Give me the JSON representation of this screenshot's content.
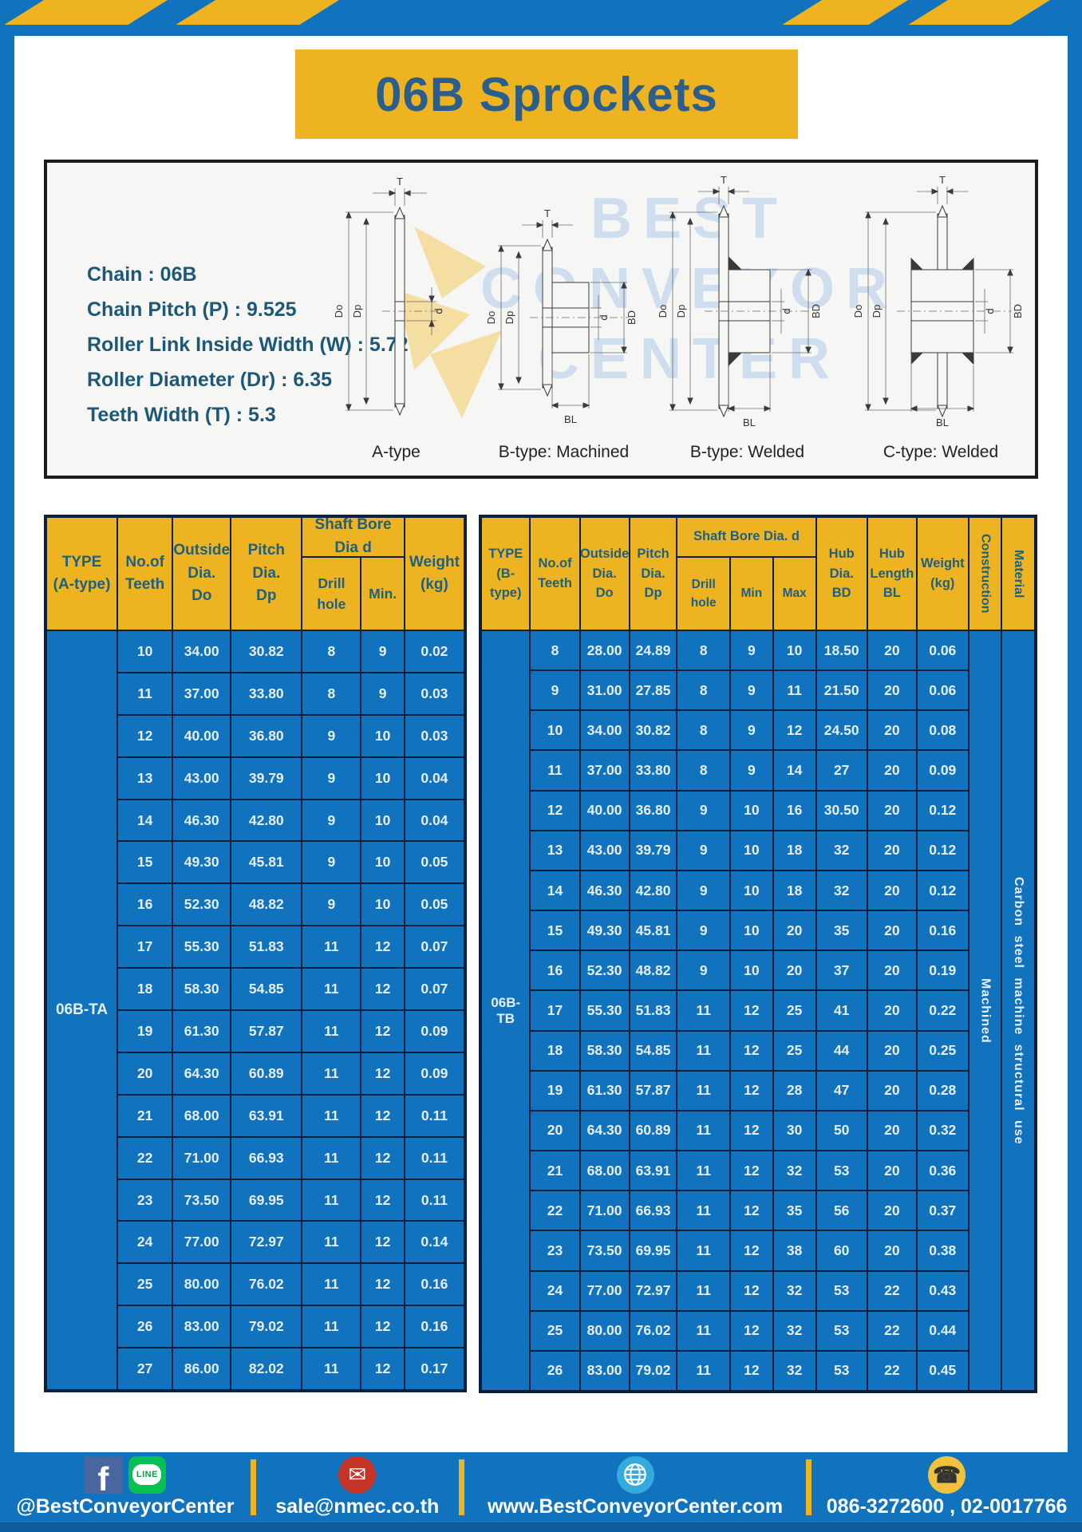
{
  "page": {
    "title": "06B Sprockets"
  },
  "colors": {
    "blue": "#1173bd",
    "yellow": "#eeb321",
    "grid_navy": "#0c1f3d",
    "header_text": "#1f607f",
    "title_text": "#2b5e8c",
    "spec_text": "#1d5878"
  },
  "specs": {
    "lines": "Chain : 06B\nChain Pitch (P) : 9.525\nRoller Link Inside Width (W) : 5.72\nRoller Diameter (Dr) : 6.35\nTeeth Width (T) : 5.3"
  },
  "watermark": {
    "text": "BEST\nCONVEYOR\nCENTER"
  },
  "diagram": {
    "captions": [
      "A-type",
      "B-type: Machined",
      "B-type: Welded",
      "C-type: Welded"
    ],
    "labels": {
      "t": "T",
      "do": "Do",
      "dp": "Dp",
      "d": "d",
      "bd": "BD",
      "bl": "BL"
    }
  },
  "table_a": {
    "header": {
      "type": "TYPE\n(A-type)",
      "teeth": "No.of\nTeeth",
      "outside": "Outside\nDia.\nDo",
      "pitch": "Pitch Dia.\nDp",
      "shaft_bore": "Shaft Bore Dia d",
      "drill": "Drill hole",
      "min": "Min.",
      "weight": "Weight\n(kg)"
    },
    "type_label": "06B-TA",
    "rows": [
      [
        "10",
        "34.00",
        "30.82",
        "8",
        "9",
        "0.02"
      ],
      [
        "11",
        "37.00",
        "33.80",
        "8",
        "9",
        "0.03"
      ],
      [
        "12",
        "40.00",
        "36.80",
        "9",
        "10",
        "0.03"
      ],
      [
        "13",
        "43.00",
        "39.79",
        "9",
        "10",
        "0.04"
      ],
      [
        "14",
        "46.30",
        "42.80",
        "9",
        "10",
        "0.04"
      ],
      [
        "15",
        "49.30",
        "45.81",
        "9",
        "10",
        "0.05"
      ],
      [
        "16",
        "52.30",
        "48.82",
        "9",
        "10",
        "0.05"
      ],
      [
        "17",
        "55.30",
        "51.83",
        "11",
        "12",
        "0.07"
      ],
      [
        "18",
        "58.30",
        "54.85",
        "11",
        "12",
        "0.07"
      ],
      [
        "19",
        "61.30",
        "57.87",
        "11",
        "12",
        "0.09"
      ],
      [
        "20",
        "64.30",
        "60.89",
        "11",
        "12",
        "0.09"
      ],
      [
        "21",
        "68.00",
        "63.91",
        "11",
        "12",
        "0.11"
      ],
      [
        "22",
        "71.00",
        "66.93",
        "11",
        "12",
        "0.11"
      ],
      [
        "23",
        "73.50",
        "69.95",
        "11",
        "12",
        "0.11"
      ],
      [
        "24",
        "77.00",
        "72.97",
        "11",
        "12",
        "0.14"
      ],
      [
        "25",
        "80.00",
        "76.02",
        "11",
        "12",
        "0.16"
      ],
      [
        "26",
        "83.00",
        "79.02",
        "11",
        "12",
        "0.16"
      ],
      [
        "27",
        "86.00",
        "82.02",
        "11",
        "12",
        "0.17"
      ]
    ]
  },
  "table_b": {
    "header": {
      "type": "TYPE\n(B-type)",
      "teeth": "No.of\nTeeth",
      "outside": "Outside\nDia.\nDo",
      "pitch": "Pitch\nDia.\nDp",
      "shaft_bore": "Shaft Bore Dia. d",
      "drill": "Drill hole",
      "min": "Min",
      "max": "Max",
      "hub_dia": "Hub\nDia.\nBD",
      "hub_len": "Hub\nLength\nBL",
      "weight": "Weight\n(kg)",
      "construction": "Construction",
      "material": "Material"
    },
    "type_label": "06B-TB",
    "construction_value": "Machined",
    "material_value": "Carbon steel machine structural use",
    "rows": [
      [
        "8",
        "28.00",
        "24.89",
        "8",
        "9",
        "10",
        "18.50",
        "20",
        "0.06"
      ],
      [
        "9",
        "31.00",
        "27.85",
        "8",
        "9",
        "11",
        "21.50",
        "20",
        "0.06"
      ],
      [
        "10",
        "34.00",
        "30.82",
        "8",
        "9",
        "12",
        "24.50",
        "20",
        "0.08"
      ],
      [
        "11",
        "37.00",
        "33.80",
        "8",
        "9",
        "14",
        "27",
        "20",
        "0.09"
      ],
      [
        "12",
        "40.00",
        "36.80",
        "9",
        "10",
        "16",
        "30.50",
        "20",
        "0.12"
      ],
      [
        "13",
        "43.00",
        "39.79",
        "9",
        "10",
        "18",
        "32",
        "20",
        "0.12"
      ],
      [
        "14",
        "46.30",
        "42.80",
        "9",
        "10",
        "18",
        "32",
        "20",
        "0.12"
      ],
      [
        "15",
        "49.30",
        "45.81",
        "9",
        "10",
        "20",
        "35",
        "20",
        "0.16"
      ],
      [
        "16",
        "52.30",
        "48.82",
        "9",
        "10",
        "20",
        "37",
        "20",
        "0.19"
      ],
      [
        "17",
        "55.30",
        "51.83",
        "11",
        "12",
        "25",
        "41",
        "20",
        "0.22"
      ],
      [
        "18",
        "58.30",
        "54.85",
        "11",
        "12",
        "25",
        "44",
        "20",
        "0.25"
      ],
      [
        "19",
        "61.30",
        "57.87",
        "11",
        "12",
        "28",
        "47",
        "20",
        "0.28"
      ],
      [
        "20",
        "64.30",
        "60.89",
        "11",
        "12",
        "30",
        "50",
        "20",
        "0.32"
      ],
      [
        "21",
        "68.00",
        "63.91",
        "11",
        "12",
        "32",
        "53",
        "20",
        "0.36"
      ],
      [
        "22",
        "71.00",
        "66.93",
        "11",
        "12",
        "35",
        "56",
        "20",
        "0.37"
      ],
      [
        "23",
        "73.50",
        "69.95",
        "11",
        "12",
        "38",
        "60",
        "20",
        "0.38"
      ],
      [
        "24",
        "77.00",
        "72.97",
        "11",
        "12",
        "32",
        "53",
        "22",
        "0.43"
      ],
      [
        "25",
        "80.00",
        "76.02",
        "11",
        "12",
        "32",
        "53",
        "22",
        "0.44"
      ],
      [
        "26",
        "83.00",
        "79.02",
        "11",
        "12",
        "32",
        "53",
        "22",
        "0.45"
      ]
    ]
  },
  "footer": {
    "social_label": "@BestConveyorCenter",
    "email": "sale@nmec.co.th",
    "website": "www.BestConveyorCenter.com",
    "phones": "086-3272600 , 02-0017766",
    "icons": {
      "facebook_glyph": "f",
      "line_text": "LINE",
      "email_glyph": "✉",
      "phone_glyph": "☎"
    }
  }
}
